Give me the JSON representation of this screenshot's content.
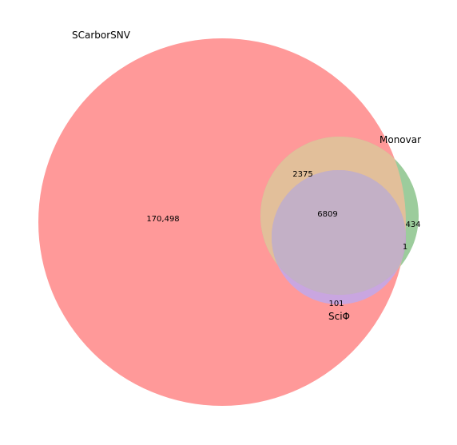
{
  "venn": {
    "sets": [
      {
        "name": "SCarborSNV",
        "color": "#ff9999"
      },
      {
        "name": "Monovar",
        "color": "#9ccc9c"
      },
      {
        "name": "SciΦ",
        "color": "#c9a6e0"
      }
    ],
    "overlap_colors": {
      "scarborsnv_monovar": "#e2bf9a",
      "scarborsnv_monovar_sciphi": "#c3b0c6",
      "monovar_sciphi": "#bfa8c9"
    },
    "regions": {
      "scarborsnv_only": "170,498",
      "scarborsnv_monovar": "2375",
      "all_three": "6809",
      "monovar_only": "434",
      "monovar_sciphi": "1",
      "scarborsnv_sciphi": "101"
    }
  }
}
